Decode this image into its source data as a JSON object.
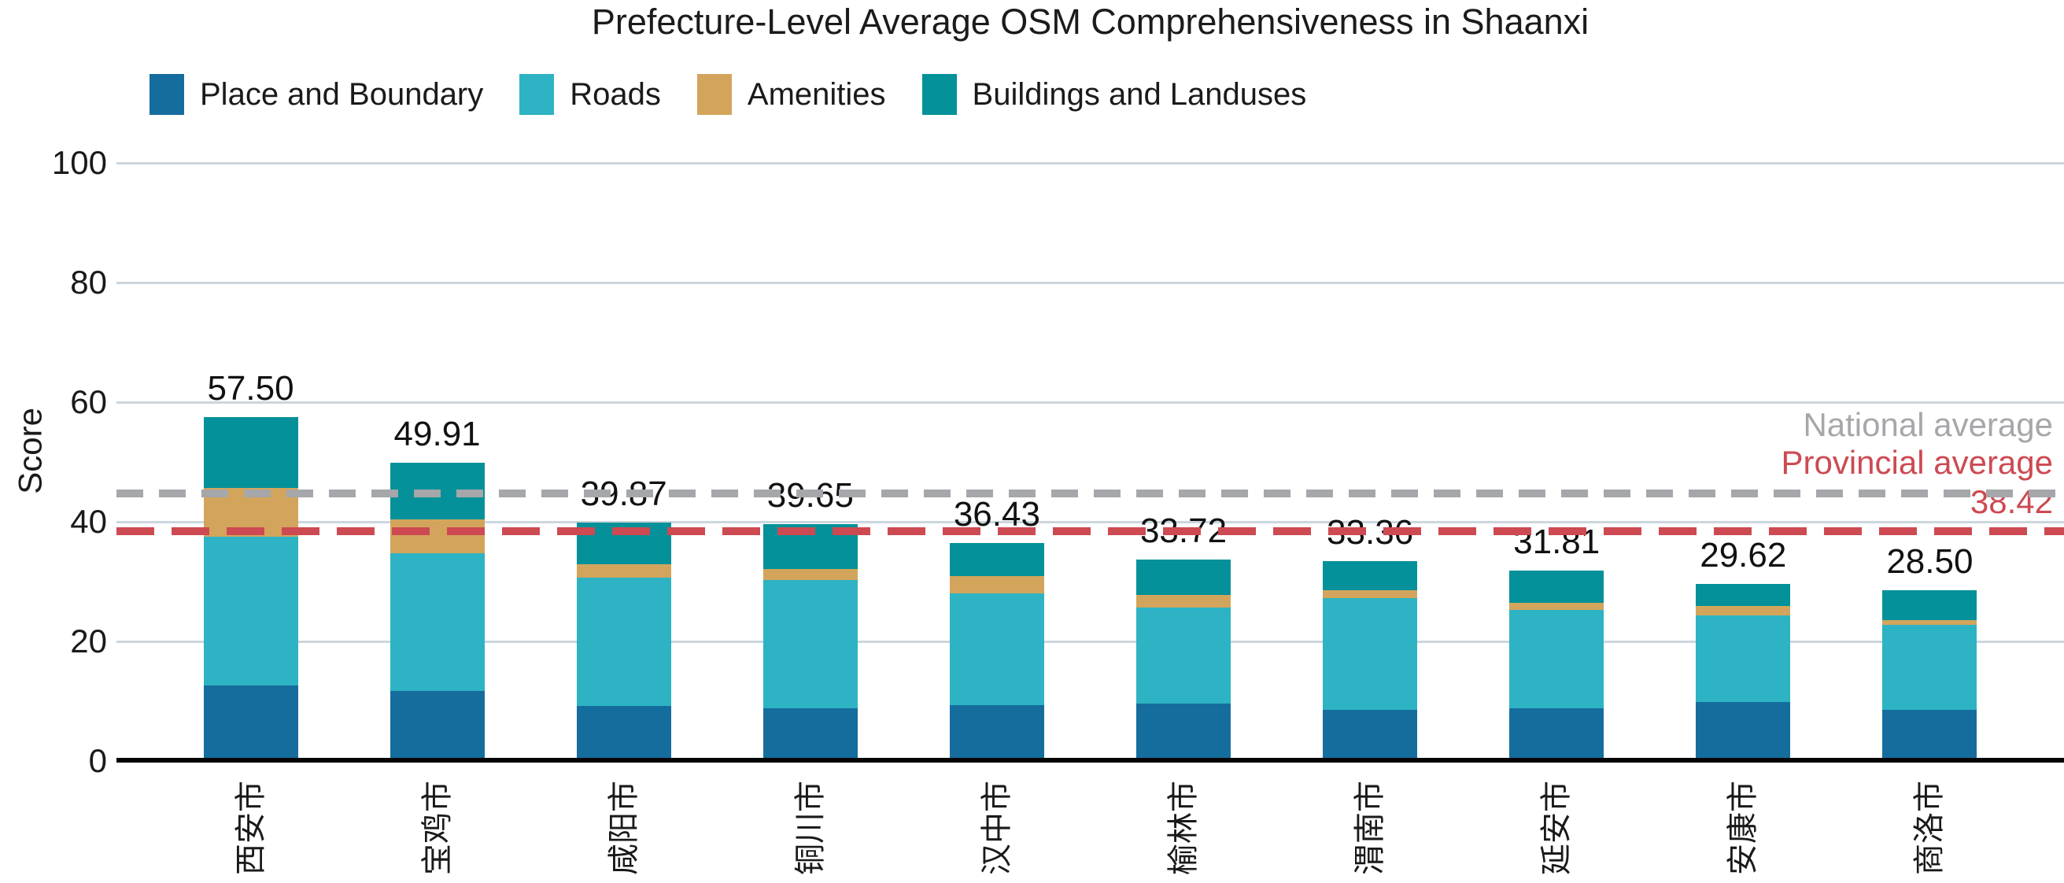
{
  "chart_data": {
    "type": "bar",
    "stacked": true,
    "title": "Prefecture-Level Average OSM Comprehensiveness in Shaanxi",
    "ylabel": "Score",
    "xlabel": "",
    "ylim": [
      0,
      100
    ],
    "yticks": [
      0,
      20,
      40,
      60,
      80,
      100
    ],
    "grid": "horizontal",
    "legend_position": "top-left",
    "categories": [
      "西安市",
      "宝鸡市",
      "咸阳市",
      "铜川市",
      "汉中市",
      "榆林市",
      "渭南市",
      "延安市",
      "安康市",
      "商洛市"
    ],
    "series": [
      {
        "name": "Place and Boundary",
        "color": "#156d9e",
        "values": [
          12.6,
          11.7,
          9.2,
          8.8,
          9.3,
          9.6,
          8.6,
          8.8,
          9.9,
          8.6
        ]
      },
      {
        "name": "Roads",
        "color": "#2db3c3",
        "values": [
          24.9,
          23.0,
          21.5,
          21.5,
          18.7,
          16.1,
          18.6,
          16.4,
          14.4,
          14.2
        ]
      },
      {
        "name": "Amenities",
        "color": "#d3a55c",
        "values": [
          8.1,
          5.7,
          2.2,
          1.8,
          2.9,
          2.1,
          1.4,
          1.3,
          1.6,
          0.8
        ]
      },
      {
        "name": "Buildings and Landuses",
        "color": "#049199",
        "values": [
          11.9,
          9.51,
          6.97,
          7.55,
          5.53,
          5.92,
          4.76,
          5.31,
          3.72,
          4.9
        ]
      }
    ],
    "totals": [
      57.5,
      49.91,
      39.87,
      39.65,
      36.43,
      33.72,
      33.36,
      31.81,
      29.62,
      28.5
    ],
    "total_labels": [
      "57.50",
      "49.91",
      "39.87",
      "39.65",
      "36.43",
      "33.72",
      "33.36",
      "31.81",
      "29.62",
      "28.50"
    ],
    "reference_lines": [
      {
        "name": "National average",
        "value": 44.7,
        "color": "#a5a7aa",
        "style": "dashed",
        "value_label": ""
      },
      {
        "name": "Provincial average",
        "value": 38.42,
        "color": "#cd4a52",
        "style": "dashed",
        "value_label": "38.42"
      }
    ],
    "colors": {
      "grid": "#ccd6de",
      "axis": "#050505",
      "text": "#1a1a1a"
    }
  }
}
